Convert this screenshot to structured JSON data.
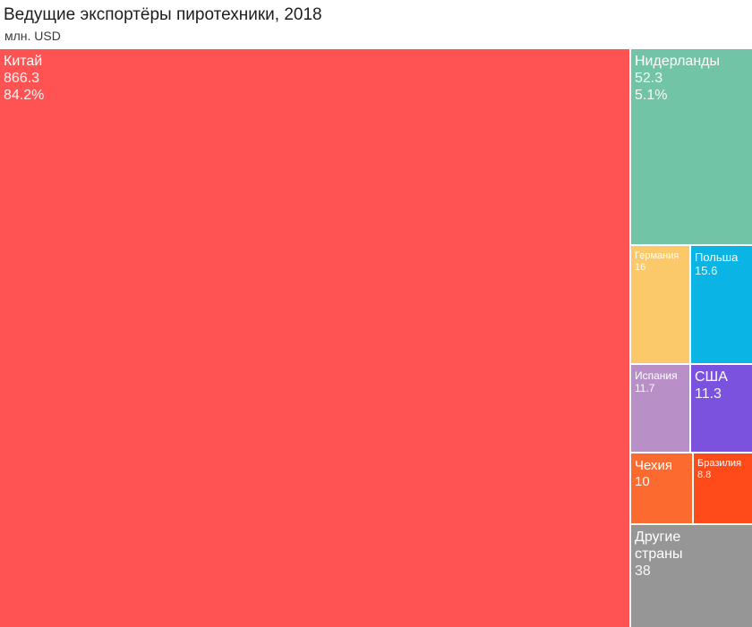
{
  "chart_data": {
    "type": "treemap",
    "title": "Ведущие экспортёры пиротехники, 2018",
    "subtitle": "млн. USD",
    "items": [
      {
        "name": "Китай",
        "value_label": "866.3",
        "value": 866.3,
        "share_label": "84.2%",
        "color": "#ff5252"
      },
      {
        "name": "Нидерланды",
        "value_label": "52.3",
        "value": 52.3,
        "share_label": "5.1%",
        "color": "#72c4a6"
      },
      {
        "name": "Германия",
        "value_label": "16",
        "value": 16,
        "share_label": "",
        "color": "#fbc96a"
      },
      {
        "name": "Польша",
        "value_label": "15.6",
        "value": 15.6,
        "share_label": "",
        "color": "#0ab4e4"
      },
      {
        "name": "Испания",
        "value_label": "11.7",
        "value": 11.7,
        "share_label": "",
        "color": "#b98fc8"
      },
      {
        "name": "США",
        "value_label": "11.3",
        "value": 11.3,
        "share_label": "",
        "color": "#7b52dd"
      },
      {
        "name": "Чехия",
        "value_label": "10",
        "value": 10,
        "share_label": "",
        "color": "#fd6a30"
      },
      {
        "name": "Бразилия",
        "value_label": "8.8",
        "value": 8.8,
        "share_label": "",
        "color": "#ff4a19"
      },
      {
        "name": "Другие\nстраны",
        "value_label": "38",
        "value": 38,
        "share_label": "",
        "color": "#969696"
      }
    ]
  }
}
